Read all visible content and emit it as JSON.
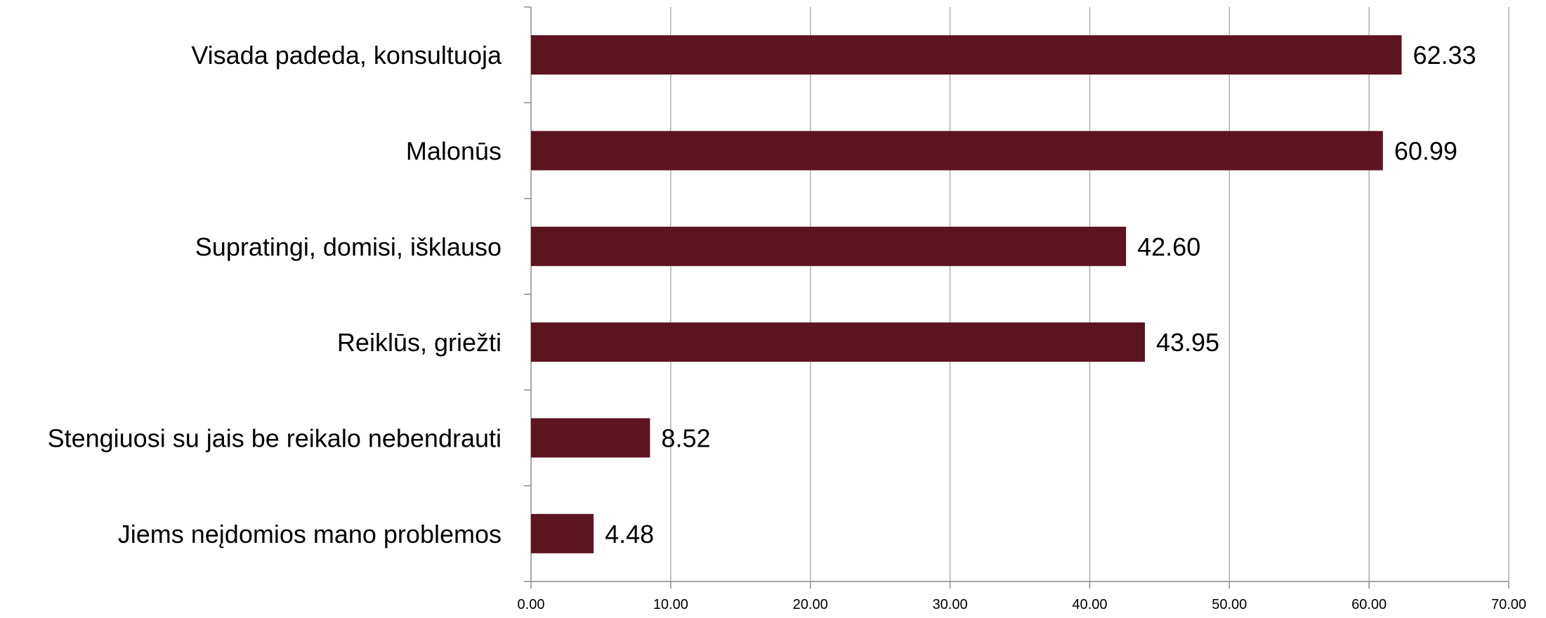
{
  "chart_data": {
    "type": "bar",
    "orientation": "horizontal",
    "title": "",
    "xlabel": "",
    "ylabel": "",
    "categories": [
      "Visada padeda, konsultuoja",
      "Malonūs",
      "Supratingi, domisi, išklauso",
      "Reiklūs, griežti",
      "Stengiuosi su jais be reikalo nebendrauti",
      "Jiems neįdomios mano problemos"
    ],
    "values": [
      62.33,
      60.99,
      42.6,
      43.95,
      8.52,
      4.48
    ],
    "value_labels": [
      "62.33",
      "60.99",
      "42.60",
      "43.95",
      "8.52",
      "4.48"
    ],
    "xlim": [
      0,
      70
    ],
    "x_ticks": [
      "0.00",
      "10.00",
      "20.00",
      "30.00",
      "40.00",
      "50.00",
      "60.00",
      "70.00"
    ],
    "grid": "vertical",
    "legend": "none",
    "colors": {
      "bar": "#5c1420",
      "grid": "#b0b0b0",
      "axis": "#8c8c8c",
      "text": "#000000"
    }
  }
}
